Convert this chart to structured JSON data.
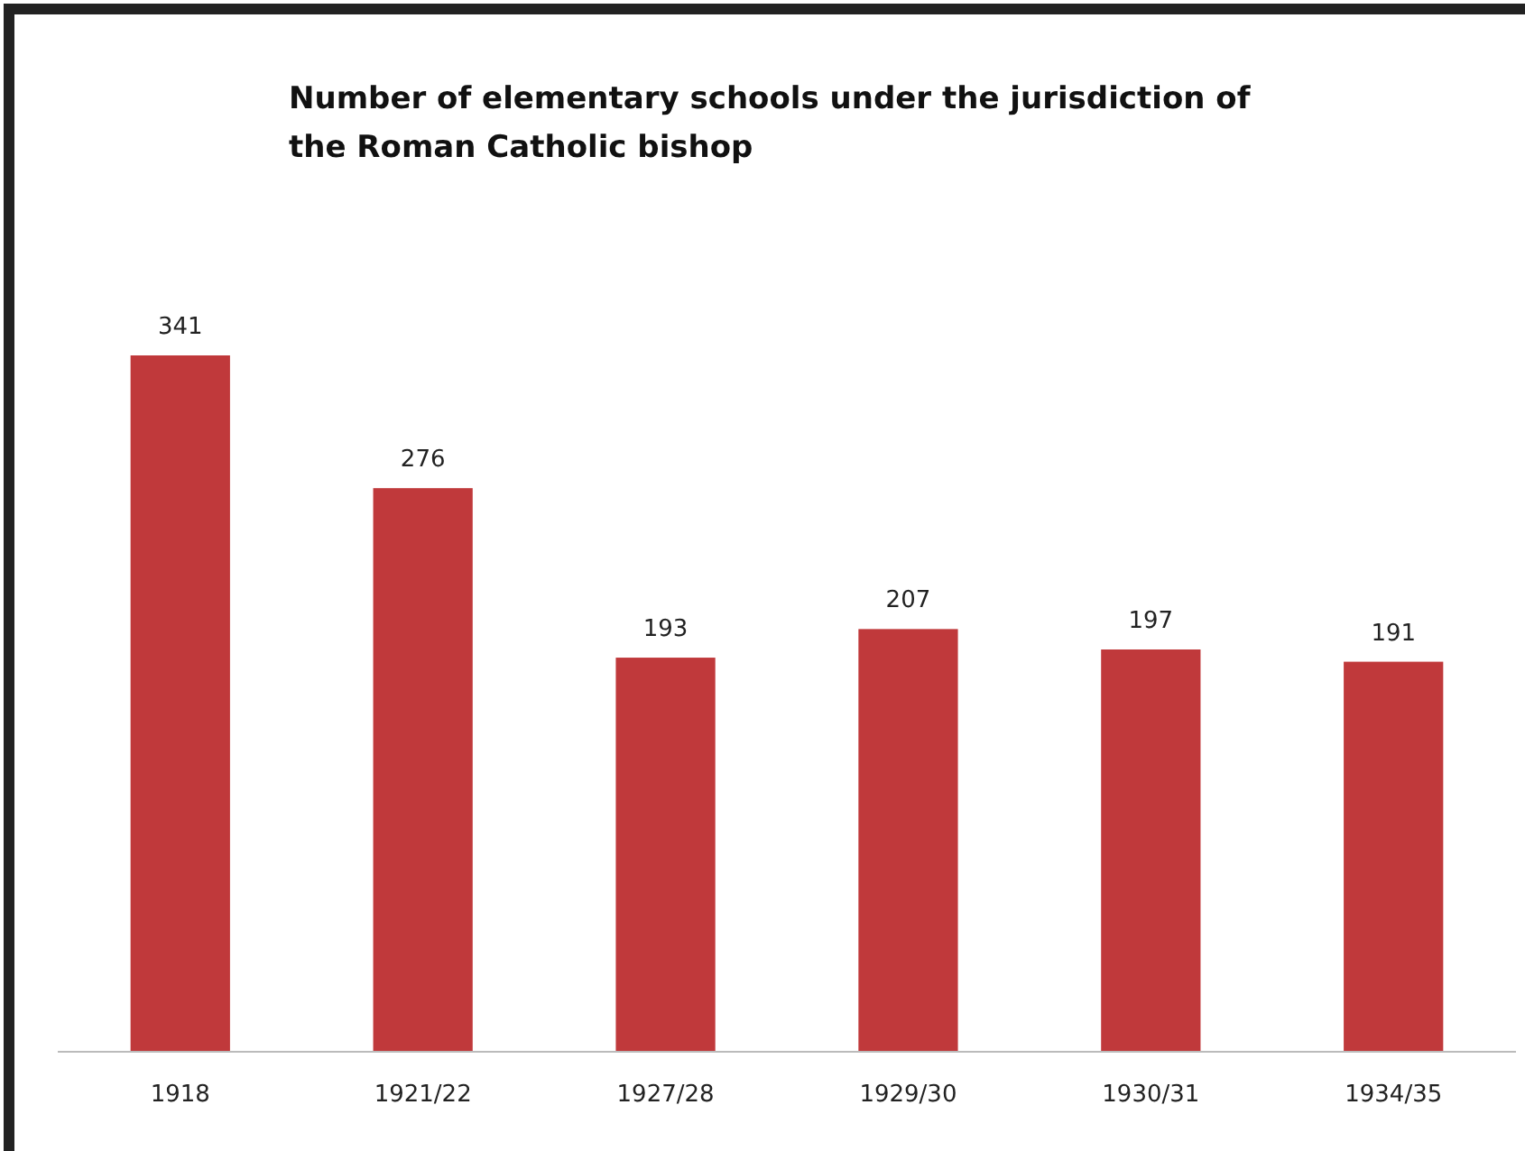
{
  "chart_data": {
    "type": "bar",
    "title": "Number of elementary schools under the jurisdiction of the Roman Catholic bishop",
    "categories": [
      "1918",
      "1921/22",
      "1927/28",
      "1929/30",
      "1930/31",
      "1934/35"
    ],
    "values": [
      341,
      276,
      193,
      207,
      197,
      191
    ],
    "color": "#c0393b",
    "data_labels": true
  }
}
